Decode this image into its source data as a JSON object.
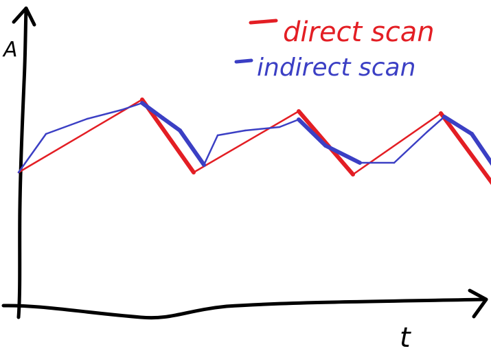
{
  "y_axis_label": "A",
  "x_axis_label": "t",
  "legend": [
    {
      "label": "direct scan",
      "color": "#e31e24"
    },
    {
      "label": "indirect scan",
      "color": "#3b3fc4"
    }
  ],
  "chart_data": {
    "type": "line",
    "title": "",
    "xlabel": "t",
    "ylabel": "A",
    "grid": false,
    "legend_position": "top-right",
    "series": [
      {
        "name": "direct scan",
        "color": "#e31e24",
        "x": [
          0,
          180,
          255,
          408,
          487,
          615,
          690
        ],
        "y": [
          196,
          302,
          196,
          285,
          193,
          282,
          180
        ]
      },
      {
        "name": "indirect scan",
        "color": "#3b3fc4",
        "x": [
          0,
          40,
          100,
          150,
          180,
          210,
          235,
          270,
          290,
          330,
          380,
          408,
          447,
          497,
          547,
          595,
          620,
          660,
          690
        ],
        "y": [
          196,
          252,
          274,
          287,
          297,
          275,
          257,
          207,
          250,
          257,
          262,
          273,
          235,
          210,
          210,
          255,
          277,
          252,
          208
        ]
      }
    ]
  }
}
